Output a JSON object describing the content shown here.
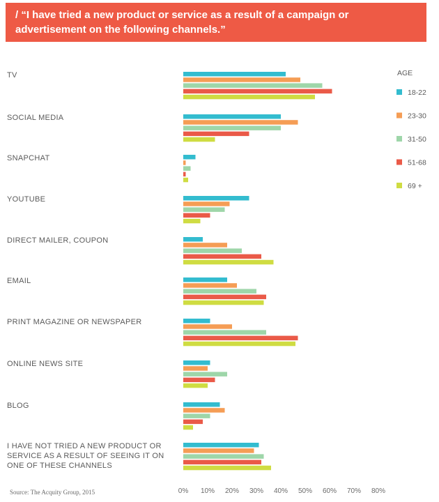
{
  "title_lines": [
    "/ “I have tried a new product or service as a result of a campaign or",
    "advertisement on the following channels.”"
  ],
  "source": "Source: The Acquity Group, 2015",
  "colors": {
    "banner": "#ee5a45",
    "series": [
      "#33bccf",
      "#f59d55",
      "#9ed6a9",
      "#ea5a48",
      "#cfdc42"
    ]
  },
  "chart_data": {
    "type": "bar",
    "orientation": "horizontal",
    "categories": [
      [
        "TV"
      ],
      [
        "SOCIAL MEDIA"
      ],
      [
        "SNAPCHAT"
      ],
      [
        "YOUTUBE"
      ],
      [
        "DIRECT MAILER, COUPON"
      ],
      [
        "EMAIL"
      ],
      [
        "PRINT MAGAZINE OR NEWSPAPER"
      ],
      [
        "ONLINE NEWS SITE"
      ],
      [
        "BLOG"
      ],
      [
        "I HAVE NOT TRIED A NEW PRODUCT OR",
        "SERVICE AS A RESULT OF SEEING IT ON",
        "ONE OF THESE CHANNELS"
      ]
    ],
    "legend_title": "AGE",
    "series": [
      {
        "name": "18-22",
        "values": [
          42,
          40,
          5,
          27,
          8,
          18,
          11,
          11,
          15,
          31
        ]
      },
      {
        "name": "23-30",
        "values": [
          48,
          47,
          1,
          19,
          18,
          22,
          20,
          10,
          17,
          29
        ]
      },
      {
        "name": "31-50",
        "values": [
          57,
          40,
          3,
          17,
          24,
          30,
          34,
          18,
          11,
          33
        ]
      },
      {
        "name": "51-68",
        "values": [
          61,
          27,
          1,
          11,
          32,
          34,
          47,
          13,
          8,
          32
        ]
      },
      {
        "name": "69 +",
        "values": [
          54,
          13,
          2,
          7,
          37,
          33,
          46,
          10,
          4,
          36
        ]
      }
    ],
    "x_ticks": [
      "0%",
      "10%",
      "20%",
      "30%",
      "40%",
      "50%",
      "60%",
      "70%",
      "80%"
    ],
    "xlim": [
      0,
      80
    ],
    "legend_position": "right",
    "grid": false
  }
}
